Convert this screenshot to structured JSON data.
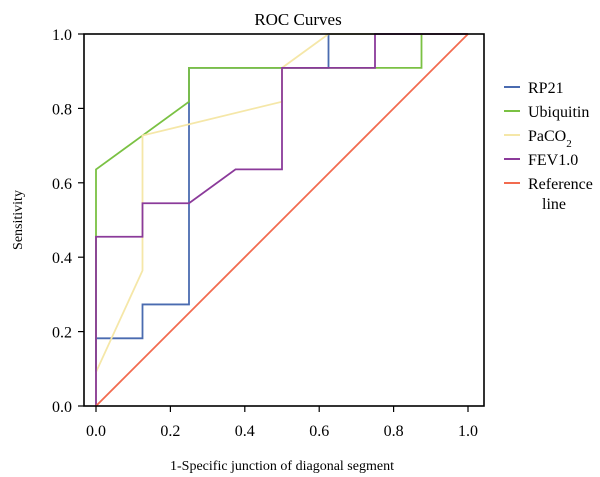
{
  "chart_data": {
    "type": "line",
    "title": "ROC Curves",
    "xlabel": "1-Specific junction of diagonal segment",
    "ylabel": "Sensitivity",
    "xlim": [
      0,
      1
    ],
    "ylim": [
      0,
      1
    ],
    "xticks": [
      "0.0",
      "0.2",
      "0.4",
      "0.6",
      "0.8",
      "1.0"
    ],
    "yticks": [
      "0.0",
      "0.2",
      "0.4",
      "0.6",
      "0.8",
      "1.0"
    ],
    "grid": false,
    "legend_position": "right",
    "series": [
      {
        "name": "RP21",
        "color": "#4a6bb0",
        "x": [
          0,
          0,
          0.125,
          0.125,
          0.25,
          0.25,
          0.5,
          0.5,
          0.625,
          0.625,
          0.75,
          0.75,
          1.0
        ],
        "y": [
          0,
          0.182,
          0.182,
          0.273,
          0.273,
          0.909,
          0.909,
          0.909,
          0.909,
          1.0,
          1.0,
          1.0,
          1.0
        ]
      },
      {
        "name": "Ubiquitin",
        "color": "#7ac143",
        "x": [
          0,
          0,
          0.125,
          0.25,
          0.25,
          0.875,
          0.875,
          1.0
        ],
        "y": [
          0,
          0.636,
          0.727,
          0.818,
          0.909,
          0.909,
          1.0,
          1.0
        ]
      },
      {
        "name": "PaCO",
        "name_sub": "2",
        "color": "#f5e7a8",
        "x": [
          0,
          0,
          0.125,
          0.125,
          0.5,
          0.5,
          0.625,
          1.0
        ],
        "y": [
          0,
          0.091,
          0.364,
          0.727,
          0.818,
          0.909,
          1.0,
          1.0
        ]
      },
      {
        "name": "FEV1.0",
        "color": "#8b3a9a",
        "x": [
          0,
          0,
          0.125,
          0.125,
          0.25,
          0.375,
          0.5,
          0.5,
          0.75,
          0.75,
          1.0
        ],
        "y": [
          0,
          0.455,
          0.455,
          0.545,
          0.545,
          0.636,
          0.636,
          0.909,
          0.909,
          1.0,
          1.0
        ]
      },
      {
        "name": "Reference",
        "name_line2": "line",
        "color": "#f26b4f",
        "x": [
          0,
          1
        ],
        "y": [
          0,
          1
        ]
      }
    ]
  }
}
